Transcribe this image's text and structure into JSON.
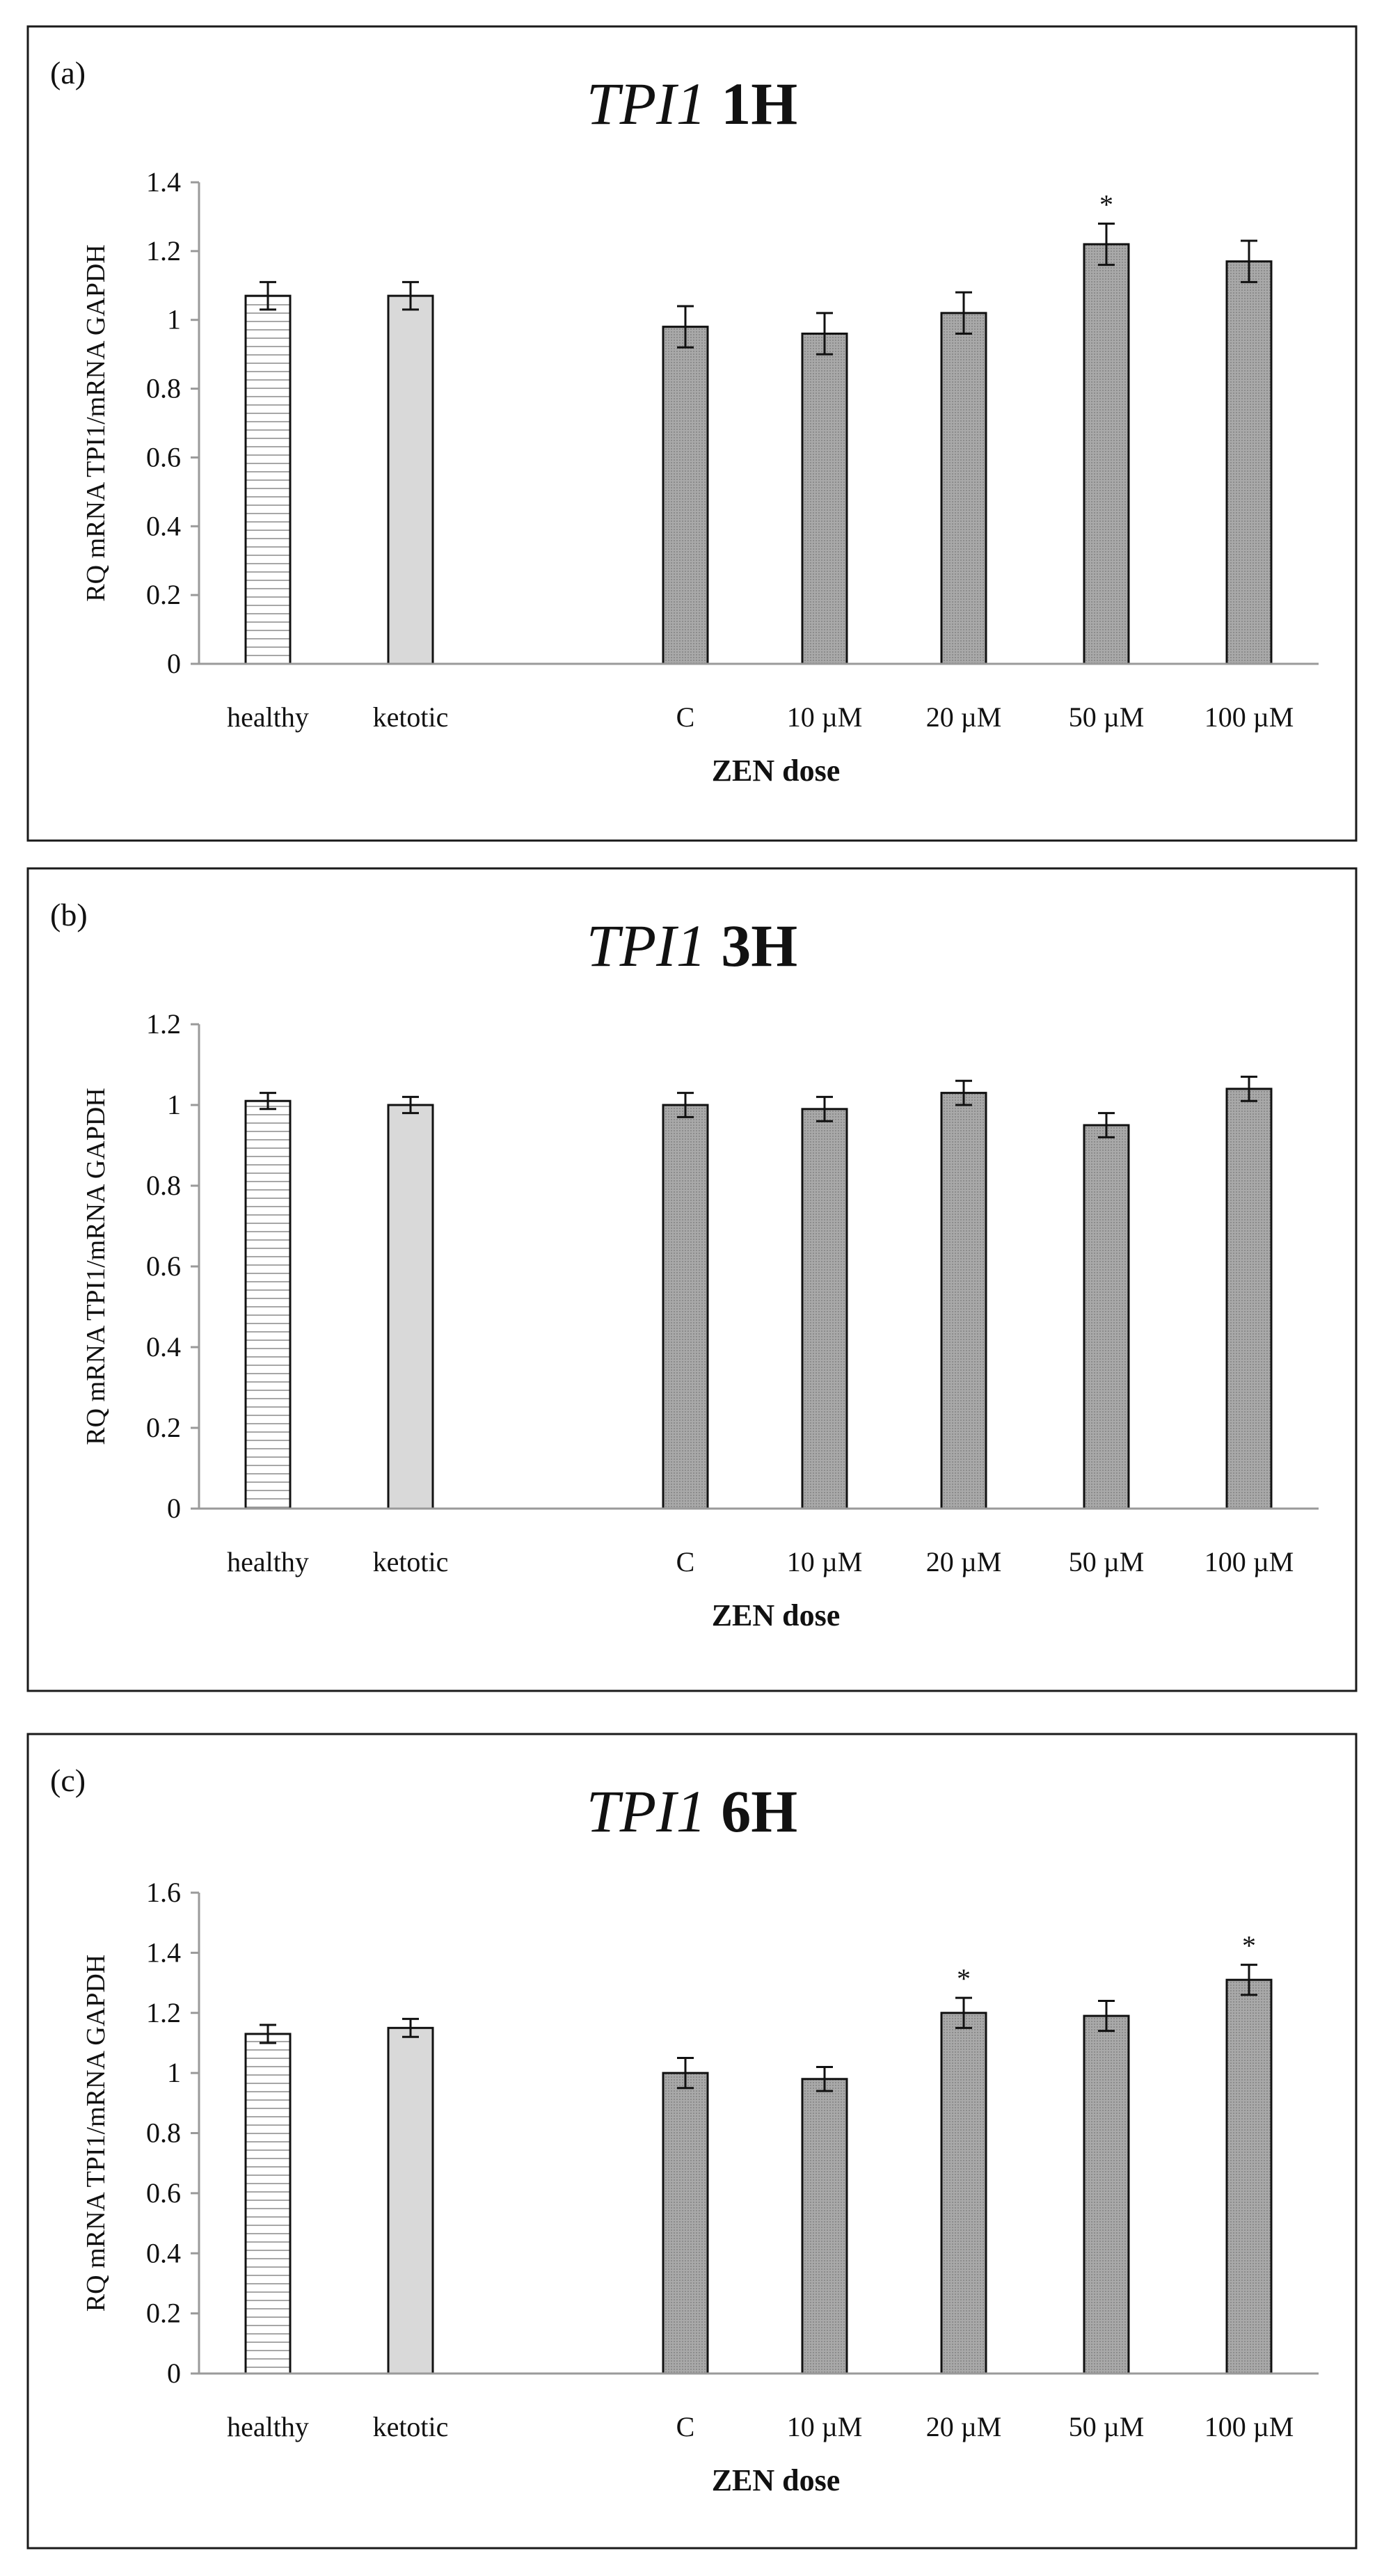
{
  "chart_data": [
    {
      "type": "bar",
      "panel_label": "(a)",
      "title_gene": "TPI1",
      "title_time": "1H",
      "xlabel": "ZEN dose",
      "ylabel": "RQ mRNA TPI1/mRNA GAPDH",
      "ylim": [
        0,
        1.4
      ],
      "yticks": [
        "0",
        "0.2",
        "0.4",
        "0.6",
        "0.8",
        "1",
        "1.2",
        "1.4"
      ],
      "categories": [
        "healthy",
        "ketotic",
        "C",
        "10 µM",
        "20 µM",
        "50 µM",
        "100 µM"
      ],
      "values": [
        1.07,
        1.07,
        0.98,
        0.96,
        1.02,
        1.22,
        1.17
      ],
      "errors": [
        0.04,
        0.04,
        0.06,
        0.06,
        0.06,
        0.06,
        0.06
      ],
      "significance": [
        "",
        "",
        "",
        "",
        "",
        "*",
        ""
      ],
      "fills": [
        "hatched",
        "light",
        "dark",
        "dark",
        "dark",
        "dark",
        "dark"
      ]
    },
    {
      "type": "bar",
      "panel_label": "(b)",
      "title_gene": "TPI1",
      "title_time": "3H",
      "xlabel": "ZEN dose",
      "ylabel": "RQ mRNA TPI1/mRNA GAPDH",
      "ylim": [
        0,
        1.2
      ],
      "yticks": [
        "0",
        "0.2",
        "0.4",
        "0.6",
        "0.8",
        "1",
        "1.2"
      ],
      "categories": [
        "healthy",
        "ketotic",
        "C",
        "10 µM",
        "20 µM",
        "50 µM",
        "100 µM"
      ],
      "values": [
        1.01,
        1.0,
        1.0,
        0.99,
        1.03,
        0.95,
        1.04
      ],
      "errors": [
        0.02,
        0.02,
        0.03,
        0.03,
        0.03,
        0.03,
        0.03
      ],
      "significance": [
        "",
        "",
        "",
        "",
        "",
        "",
        ""
      ],
      "fills": [
        "hatched",
        "light",
        "dark",
        "dark",
        "dark",
        "dark",
        "dark"
      ]
    },
    {
      "type": "bar",
      "panel_label": "(c)",
      "title_gene": "TPI1",
      "title_time": "6H",
      "xlabel": "ZEN dose",
      "ylabel": "RQ mRNA TPI1/mRNA GAPDH",
      "ylim": [
        0,
        1.6
      ],
      "yticks": [
        "0",
        "0.2",
        "0.4",
        "0.6",
        "0.8",
        "1",
        "1.2",
        "1.4",
        "1.6"
      ],
      "categories": [
        "healthy",
        "ketotic",
        "C",
        "10 µM",
        "20 µM",
        "50 µM",
        "100 µM"
      ],
      "values": [
        1.13,
        1.15,
        1.0,
        0.98,
        1.2,
        1.19,
        1.31
      ],
      "errors": [
        0.03,
        0.03,
        0.05,
        0.04,
        0.05,
        0.05,
        0.05
      ],
      "significance": [
        "",
        "",
        "",
        "",
        "*",
        "",
        "*"
      ],
      "fills": [
        "hatched",
        "light",
        "dark",
        "dark",
        "dark",
        "dark",
        "dark"
      ]
    }
  ]
}
